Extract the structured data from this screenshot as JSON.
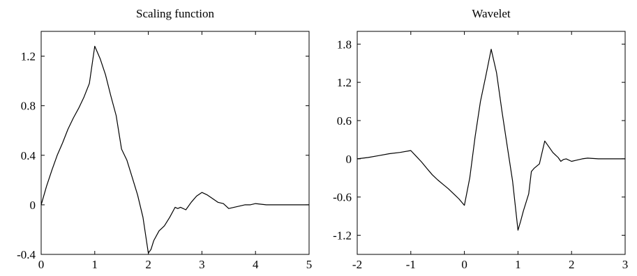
{
  "chart_data": [
    {
      "type": "line",
      "title": "Scaling function",
      "xlabel": "",
      "ylabel": "",
      "xlim": [
        0,
        5
      ],
      "ylim": [
        -0.4,
        1.4
      ],
      "xticks": [
        0,
        1,
        2,
        3,
        4,
        5
      ],
      "xtick_labels": [
        "0",
        "1",
        "2",
        "3",
        "4",
        "5"
      ],
      "yticks": [
        -0.4,
        0,
        0.4,
        0.8,
        1.2
      ],
      "ytick_labels": [
        "-0.4",
        "0",
        "0.4",
        "0.8",
        "1.2"
      ],
      "grid": false,
      "series": [
        {
          "x": [
            0,
            0.1,
            0.2,
            0.3,
            0.4,
            0.5,
            0.6,
            0.7,
            0.8,
            0.9,
            1.0,
            1.1,
            1.2,
            1.3,
            1.4,
            1.5,
            1.6,
            1.7,
            1.8,
            1.9,
            2.0,
            2.05,
            2.1,
            2.2,
            2.25,
            2.3,
            2.4,
            2.5,
            2.55,
            2.6,
            2.7,
            2.8,
            2.9,
            3.0,
            3.1,
            3.2,
            3.3,
            3.4,
            3.5,
            3.6,
            3.7,
            3.8,
            3.9,
            4.0,
            4.2,
            4.4,
            4.6,
            4.8,
            5.0
          ],
          "y": [
            0,
            0.15,
            0.28,
            0.4,
            0.5,
            0.61,
            0.7,
            0.78,
            0.87,
            0.98,
            1.28,
            1.18,
            1.05,
            0.88,
            0.72,
            0.45,
            0.36,
            0.22,
            0.08,
            -0.1,
            -0.39,
            -0.36,
            -0.29,
            -0.21,
            -0.19,
            -0.17,
            -0.1,
            -0.02,
            -0.03,
            -0.02,
            -0.04,
            0.02,
            0.07,
            0.1,
            0.08,
            0.05,
            0.02,
            0.01,
            -0.03,
            -0.02,
            -0.01,
            0.0,
            0.0,
            0.01,
            0.0,
            0.0,
            0.0,
            0.0,
            0.0
          ]
        }
      ]
    },
    {
      "type": "line",
      "title": "Wavelet",
      "xlabel": "",
      "ylabel": "",
      "xlim": [
        -2,
        3
      ],
      "ylim": [
        -1.5,
        2.0
      ],
      "xticks": [
        -2,
        -1,
        0,
        1,
        2,
        3
      ],
      "xtick_labels": [
        "-2",
        "-1",
        "0",
        "1",
        "2",
        "3"
      ],
      "yticks": [
        -1.2,
        -0.6,
        0,
        0.6,
        1.2,
        1.8
      ],
      "ytick_labels": [
        "-1.2",
        "-0.6",
        "0",
        "0.6",
        "1.2",
        "1.8"
      ],
      "grid": false,
      "series": [
        {
          "x": [
            -2.0,
            -1.8,
            -1.6,
            -1.4,
            -1.2,
            -1.0,
            -0.9,
            -0.8,
            -0.7,
            -0.6,
            -0.5,
            -0.4,
            -0.3,
            -0.2,
            -0.1,
            0.0,
            0.1,
            0.2,
            0.3,
            0.4,
            0.5,
            0.6,
            0.7,
            0.8,
            0.9,
            1.0,
            1.05,
            1.1,
            1.2,
            1.25,
            1.3,
            1.4,
            1.5,
            1.55,
            1.6,
            1.65,
            1.7,
            1.75,
            1.8,
            1.85,
            1.9,
            2.0,
            2.1,
            2.2,
            2.3,
            2.5,
            2.7,
            3.0
          ],
          "y": [
            0.0,
            0.02,
            0.05,
            0.08,
            0.1,
            0.13,
            0.04,
            -0.05,
            -0.15,
            -0.25,
            -0.33,
            -0.4,
            -0.47,
            -0.55,
            -0.63,
            -0.73,
            -0.3,
            0.35,
            0.9,
            1.3,
            1.72,
            1.35,
            0.75,
            0.2,
            -0.35,
            -1.12,
            -0.98,
            -0.82,
            -0.55,
            -0.2,
            -0.15,
            -0.08,
            0.28,
            0.22,
            0.16,
            0.1,
            0.06,
            0.02,
            -0.04,
            -0.01,
            0.0,
            -0.04,
            -0.02,
            0.0,
            0.01,
            0.0,
            0.0,
            0.0
          ]
        }
      ]
    }
  ]
}
